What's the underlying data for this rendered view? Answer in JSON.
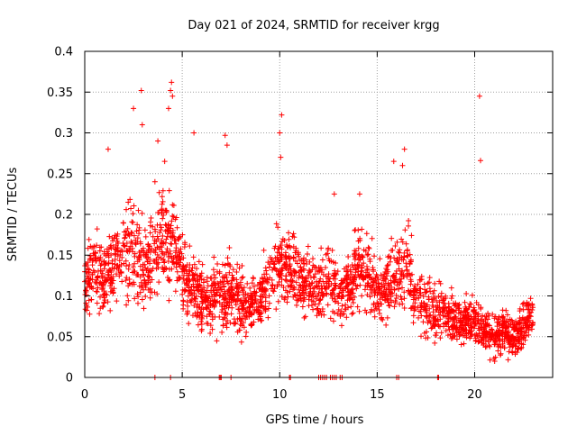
{
  "chart_data": {
    "type": "scatter",
    "title": "Day 021 of 2024, SRMTID for receiver krgg",
    "xlabel": "GPS time / hours",
    "ylabel": "SRMTID / TECUs",
    "xlim": [
      0,
      24.0
    ],
    "ylim": [
      0,
      0.4
    ],
    "x_ticks": [
      0,
      5,
      10,
      15,
      20
    ],
    "x_tick_labels": [
      "0",
      "5",
      "10",
      "15",
      "20"
    ],
    "y_ticks": [
      0,
      0.05,
      0.1,
      0.15,
      0.2,
      0.25,
      0.3,
      0.35,
      0.4
    ],
    "y_tick_labels": [
      "0",
      "0.05",
      "0.1",
      "0.15",
      "0.2",
      "0.25",
      "0.3",
      "0.35",
      "0.4"
    ],
    "grid": true,
    "marker": "+",
    "series_color": "#ff0000",
    "trend": {
      "hours": [
        0.0,
        0.5,
        1.0,
        1.5,
        2.0,
        2.5,
        3.0,
        3.5,
        4.0,
        4.5,
        5.0,
        5.5,
        6.0,
        6.5,
        7.0,
        7.5,
        8.0,
        8.5,
        9.0,
        9.5,
        10.0,
        10.5,
        11.0,
        11.5,
        12.0,
        12.5,
        13.0,
        13.5,
        14.0,
        14.5,
        15.0,
        15.5,
        16.0,
        16.5,
        17.0,
        17.5,
        18.0,
        18.5,
        19.0,
        19.5,
        20.0,
        20.5,
        21.0,
        21.5,
        22.0,
        22.5,
        23.0
      ],
      "typical": [
        0.12,
        0.13,
        0.12,
        0.14,
        0.15,
        0.16,
        0.13,
        0.14,
        0.17,
        0.16,
        0.13,
        0.11,
        0.1,
        0.09,
        0.1,
        0.11,
        0.09,
        0.09,
        0.1,
        0.12,
        0.14,
        0.13,
        0.12,
        0.11,
        0.11,
        0.12,
        0.1,
        0.11,
        0.14,
        0.13,
        0.1,
        0.11,
        0.12,
        0.14,
        0.1,
        0.09,
        0.08,
        0.08,
        0.07,
        0.07,
        0.07,
        0.06,
        0.05,
        0.06,
        0.05,
        0.06,
        0.08
      ],
      "spread": [
        0.04,
        0.05,
        0.05,
        0.05,
        0.06,
        0.07,
        0.07,
        0.06,
        0.06,
        0.06,
        0.05,
        0.04,
        0.04,
        0.04,
        0.05,
        0.05,
        0.04,
        0.04,
        0.04,
        0.05,
        0.05,
        0.05,
        0.04,
        0.04,
        0.04,
        0.05,
        0.04,
        0.04,
        0.06,
        0.05,
        0.04,
        0.04,
        0.05,
        0.05,
        0.04,
        0.04,
        0.04,
        0.03,
        0.03,
        0.03,
        0.03,
        0.03,
        0.03,
        0.03,
        0.03,
        0.03,
        0.03
      ]
    },
    "notable_points": [
      {
        "x": 4.45,
        "y": 0.362
      },
      {
        "x": 4.4,
        "y": 0.352
      },
      {
        "x": 4.5,
        "y": 0.345
      },
      {
        "x": 2.9,
        "y": 0.352
      },
      {
        "x": 2.5,
        "y": 0.33
      },
      {
        "x": 2.95,
        "y": 0.31
      },
      {
        "x": 4.3,
        "y": 0.33
      },
      {
        "x": 5.6,
        "y": 0.3
      },
      {
        "x": 7.2,
        "y": 0.297
      },
      {
        "x": 7.3,
        "y": 0.285
      },
      {
        "x": 10.1,
        "y": 0.322
      },
      {
        "x": 10.0,
        "y": 0.3
      },
      {
        "x": 10.05,
        "y": 0.27
      },
      {
        "x": 16.4,
        "y": 0.28
      },
      {
        "x": 16.3,
        "y": 0.26
      },
      {
        "x": 20.25,
        "y": 0.345
      },
      {
        "x": 20.3,
        "y": 0.266
      },
      {
        "x": 1.2,
        "y": 0.28
      },
      {
        "x": 3.75,
        "y": 0.29
      },
      {
        "x": 14.1,
        "y": 0.225
      },
      {
        "x": 12.8,
        "y": 0.225
      },
      {
        "x": 4.1,
        "y": 0.265
      },
      {
        "x": 3.6,
        "y": 0.24
      },
      {
        "x": 15.85,
        "y": 0.265
      }
    ],
    "zero_points_x": [
      3.6,
      4.4,
      6.9,
      6.95,
      7.0,
      7.5,
      10.5,
      10.55,
      12.0,
      12.1,
      12.2,
      12.3,
      12.4,
      12.6,
      12.7,
      12.8,
      12.9,
      13.1,
      13.2,
      16.0,
      16.1,
      18.1,
      18.15
    ]
  }
}
